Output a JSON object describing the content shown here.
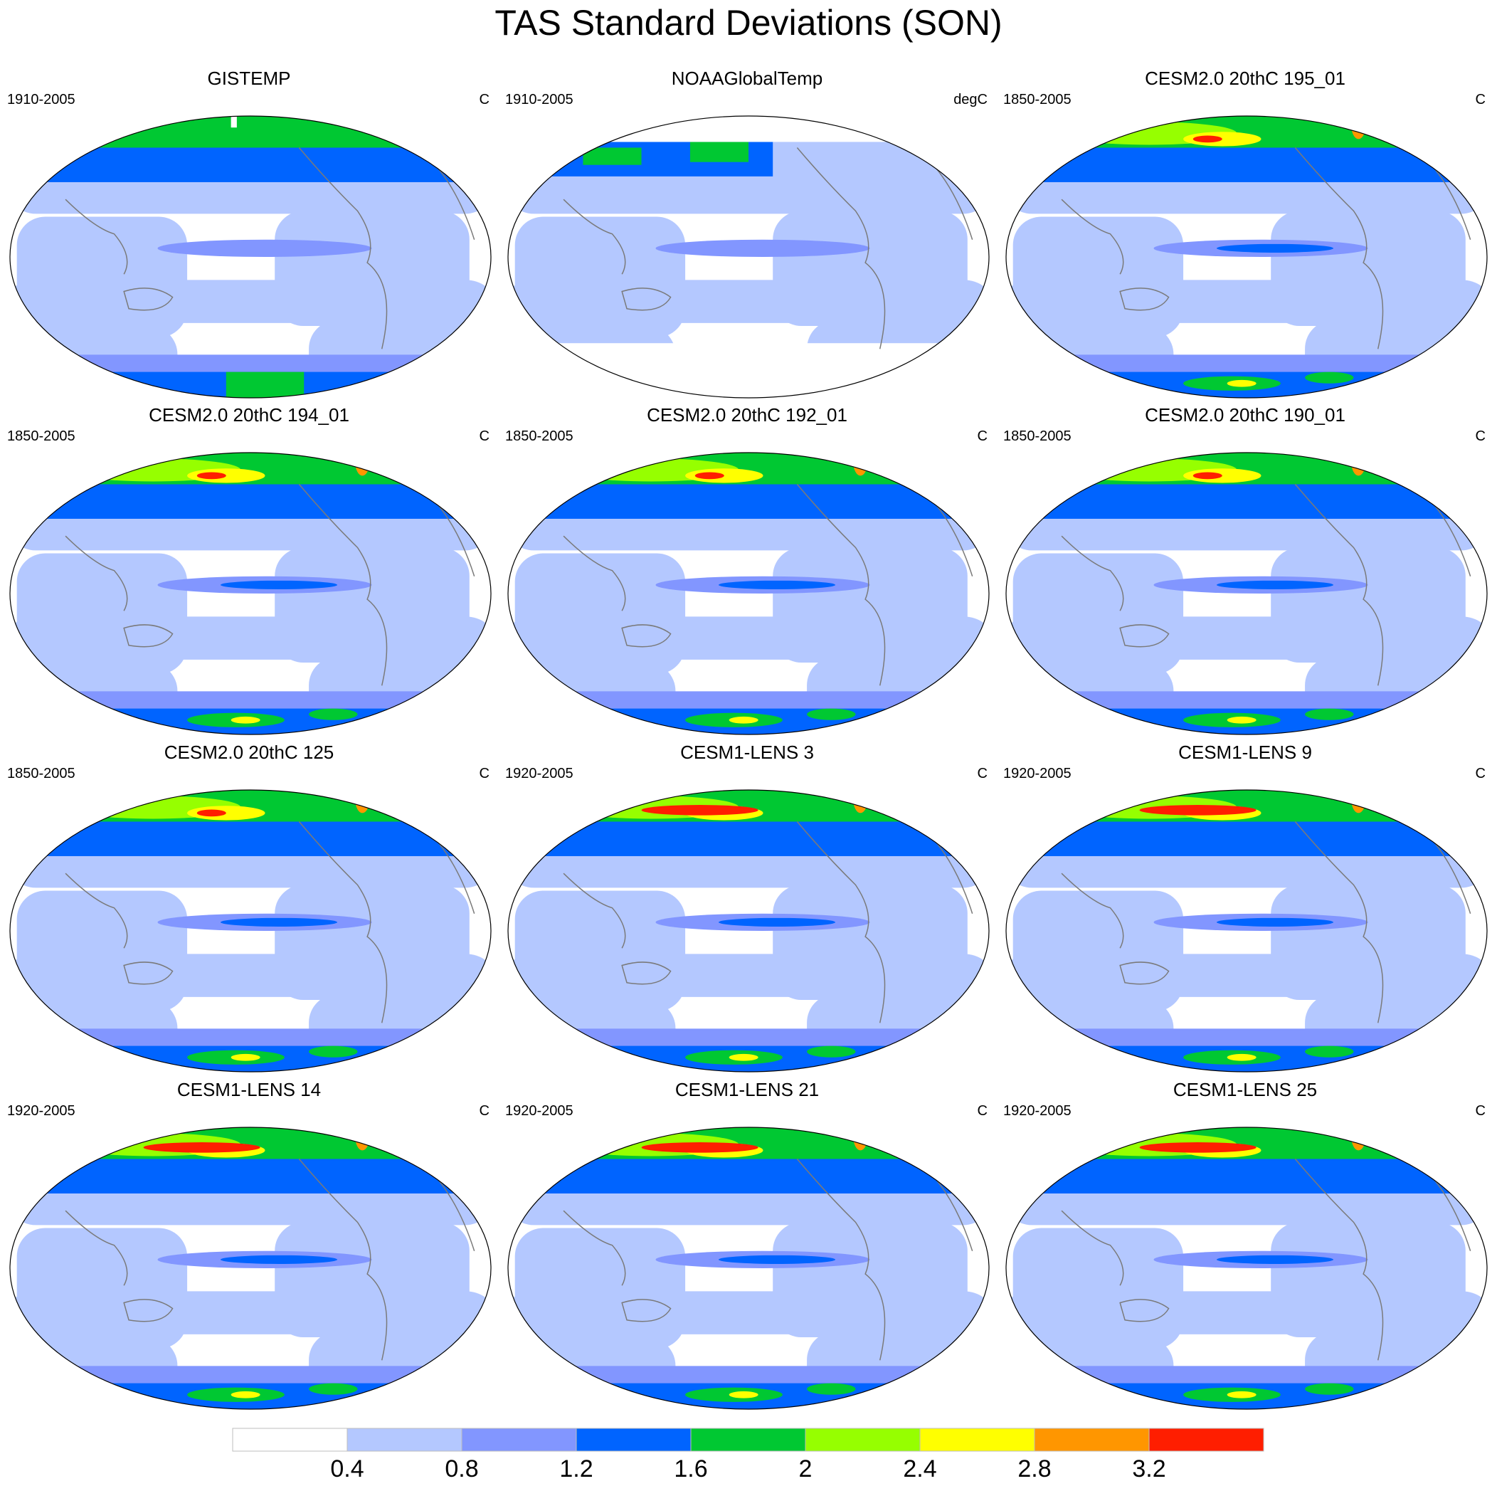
{
  "title": "TAS Standard Deviations (SON)",
  "panels": [
    {
      "title": "GISTEMP",
      "period": "1910-2005",
      "units": "C",
      "variant": "obs-gistemp"
    },
    {
      "title": "NOAAGlobalTemp",
      "period": "1910-2005",
      "units": "degC",
      "variant": "obs-noaa"
    },
    {
      "title": "CESM2.0 20thC 195_01",
      "period": "1850-2005",
      "units": "C",
      "variant": "cesm2"
    },
    {
      "title": "CESM2.0 20thC 194_01",
      "period": "1850-2005",
      "units": "C",
      "variant": "cesm2"
    },
    {
      "title": "CESM2.0 20thC 192_01",
      "period": "1850-2005",
      "units": "C",
      "variant": "cesm2"
    },
    {
      "title": "CESM2.0 20thC 190_01",
      "period": "1850-2005",
      "units": "C",
      "variant": "cesm2"
    },
    {
      "title": "CESM2.0 20thC 125",
      "period": "1850-2005",
      "units": "C",
      "variant": "cesm2"
    },
    {
      "title": "CESM1-LENS 3",
      "period": "1920-2005",
      "units": "C",
      "variant": "lens"
    },
    {
      "title": "CESM1-LENS 9",
      "period": "1920-2005",
      "units": "C",
      "variant": "lens"
    },
    {
      "title": "CESM1-LENS 14",
      "period": "1920-2005",
      "units": "C",
      "variant": "lens"
    },
    {
      "title": "CESM1-LENS 21",
      "period": "1920-2005",
      "units": "C",
      "variant": "lens"
    },
    {
      "title": "CESM1-LENS 25",
      "period": "1920-2005",
      "units": "C",
      "variant": "lens"
    }
  ],
  "colorbar": {
    "labels": [
      "0.4",
      "0.8",
      "1.2",
      "1.6",
      "2",
      "2.4",
      "2.8",
      "3.2"
    ],
    "colors": [
      "#ffffff",
      "#b4c8ff",
      "#8296ff",
      "#0064ff",
      "#00c832",
      "#96ff00",
      "#ffff00",
      "#ff9600",
      "#ff1e00"
    ]
  },
  "colors": {
    "coastline": "#7a7a7a",
    "map_outline": "#000000"
  }
}
